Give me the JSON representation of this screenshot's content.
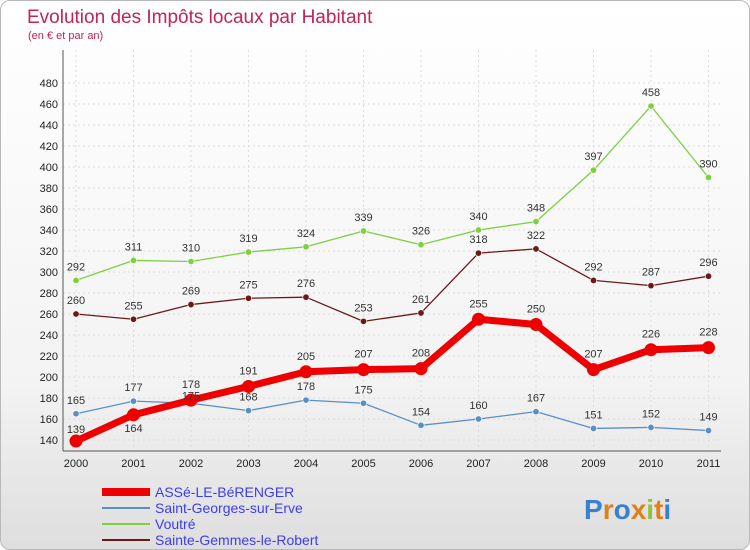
{
  "chart_data": {
    "type": "line",
    "title": "Evolution des Impôts locaux par Habitant",
    "subtitle": "(en € et par an)",
    "x": [
      "2000",
      "2001",
      "2002",
      "2003",
      "2004",
      "2005",
      "2006",
      "2007",
      "2008",
      "2009",
      "2010",
      "2011"
    ],
    "ylim": [
      130,
      490
    ],
    "yticks": [
      140,
      160,
      180,
      200,
      220,
      240,
      260,
      280,
      300,
      320,
      340,
      360,
      380,
      400,
      420,
      440,
      460,
      480
    ],
    "series": [
      {
        "name": "Saint-Georges-sur-Erve",
        "color": "#5a8fc6",
        "values": [
          165,
          177,
          175,
          168,
          178,
          175,
          154,
          160,
          167,
          151,
          152,
          149
        ],
        "labels": [
          "165",
          "177",
          "175",
          "168",
          "178",
          "175",
          "154",
          "160",
          "167",
          "151",
          "152",
          "149"
        ]
      },
      {
        "name": "Voutré",
        "color": "#7ed040",
        "values": [
          292,
          311,
          310,
          319,
          324,
          339,
          326,
          340,
          348,
          397,
          458,
          390
        ],
        "labels": [
          "292",
          "311",
          "310",
          "319",
          "324",
          "339",
          "326",
          "340",
          "348",
          "397",
          "458",
          "390"
        ]
      },
      {
        "name": "Sainte-Gemmes-le-Robert",
        "color": "#6b1a1a",
        "values": [
          260,
          255,
          269,
          275,
          276,
          253,
          261,
          318,
          322,
          292,
          287,
          296
        ],
        "labels": [
          "260",
          "255",
          "269",
          "275",
          "276",
          "253",
          "261",
          "318",
          "322",
          "292",
          "287",
          "296"
        ]
      },
      {
        "name": "ASSé-LE-BéRENGER",
        "color": "#ee0000",
        "values": [
          139,
          164,
          178,
          191,
          205,
          207,
          208,
          255,
          250,
          207,
          226,
          228
        ],
        "labels": [
          "139",
          "164",
          "178",
          "191",
          "205",
          "207",
          "208",
          "255",
          "250",
          "207",
          "226",
          "228"
        ]
      }
    ],
    "legend": [
      "ASSé-LE-BéRENGER",
      "Saint-Georges-sur-Erve",
      "Voutré",
      "Sainte-Gemmes-le-Robert"
    ]
  },
  "brand": {
    "text": "Proxiti",
    "letters": [
      "P",
      "r",
      "o",
      "x",
      "i",
      "t",
      "i"
    ],
    "colors": [
      "#3a7fd0",
      "#e0801a",
      "#3a7fd0",
      "#e0801a",
      "#8fc33a",
      "#e0801a",
      "#3a7fd0"
    ]
  }
}
